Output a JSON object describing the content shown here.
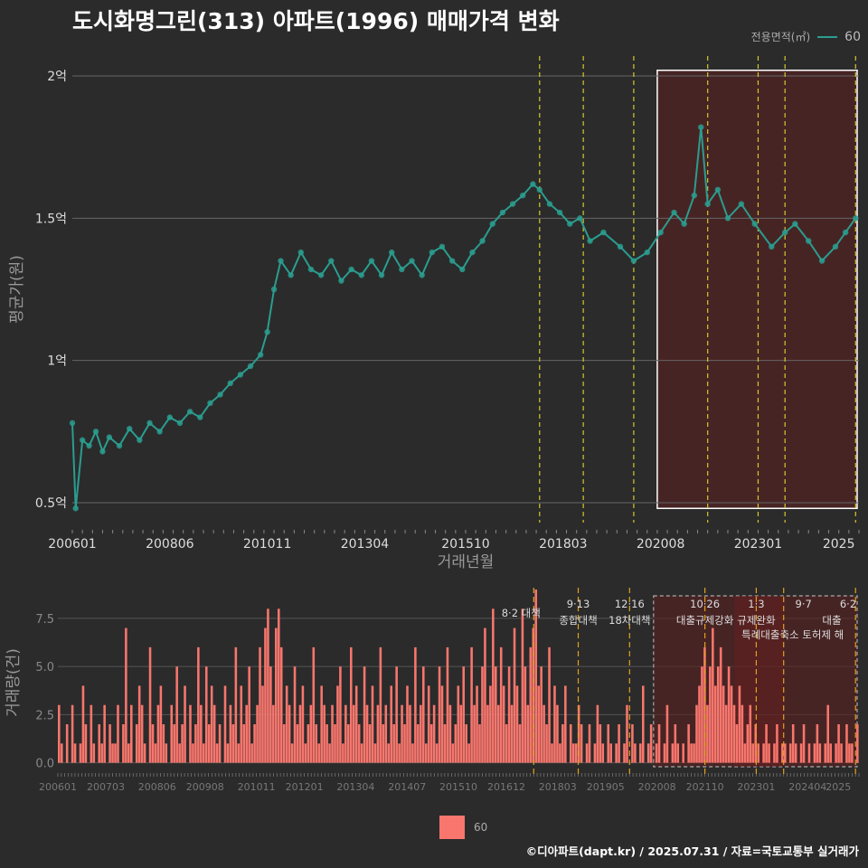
{
  "title": "도시화명그린(313) 아파트(1996) 매매가격 변화",
  "legend_top": {
    "title": "전용면적(㎡)",
    "value": "60"
  },
  "legend_bottom": {
    "value": "60"
  },
  "footer": "©디아파트(dapt.kr) / 2025.07.31 / 자료=국토교통부 실거래가",
  "colors": {
    "background": "#2b2b2b",
    "line": "#2a9d8f",
    "bar": "#f8766d",
    "policy_top": "#d4c832",
    "policy_bottom": "#e0a020",
    "highlight": "#5a1f1f"
  },
  "chart_data": [
    {
      "type": "line",
      "ylabel": "평균가(원)",
      "xlabel": "거래년월",
      "y_ticks": [
        "0.5억",
        "1억",
        "1.5억",
        "2억"
      ],
      "y_tick_values": [
        0.5,
        1.0,
        1.5,
        2.0
      ],
      "ylim": [
        0.43,
        2.07
      ],
      "x_ticks": [
        "200601",
        "200806",
        "201011",
        "201304",
        "201510",
        "201803",
        "202008",
        "202301",
        "2025"
      ],
      "xlim": [
        "2006-01",
        "2025-07"
      ],
      "policy_lines": [
        "2017-08",
        "2018-09",
        "2019-12",
        "2021-10",
        "2023-01",
        "2023-09",
        "2025-06"
      ],
      "highlight_range": [
        "2020-07",
        "2025-07"
      ],
      "series": [
        {
          "name": "60",
          "points": [
            [
              "2006-01",
              0.78
            ],
            [
              "2006-02",
              0.48
            ],
            [
              "2006-04",
              0.72
            ],
            [
              "2006-06",
              0.7
            ],
            [
              "2006-08",
              0.75
            ],
            [
              "2006-10",
              0.68
            ],
            [
              "2006-12",
              0.73
            ],
            [
              "2007-03",
              0.7
            ],
            [
              "2007-06",
              0.76
            ],
            [
              "2007-09",
              0.72
            ],
            [
              "2007-12",
              0.78
            ],
            [
              "2008-03",
              0.75
            ],
            [
              "2008-06",
              0.8
            ],
            [
              "2008-09",
              0.78
            ],
            [
              "2008-12",
              0.82
            ],
            [
              "2009-03",
              0.8
            ],
            [
              "2009-06",
              0.85
            ],
            [
              "2009-09",
              0.88
            ],
            [
              "2009-12",
              0.92
            ],
            [
              "2010-03",
              0.95
            ],
            [
              "2010-06",
              0.98
            ],
            [
              "2010-09",
              1.02
            ],
            [
              "2010-11",
              1.1
            ],
            [
              "2011-01",
              1.25
            ],
            [
              "2011-03",
              1.35
            ],
            [
              "2011-06",
              1.3
            ],
            [
              "2011-09",
              1.38
            ],
            [
              "2011-12",
              1.32
            ],
            [
              "2012-03",
              1.3
            ],
            [
              "2012-06",
              1.35
            ],
            [
              "2012-09",
              1.28
            ],
            [
              "2012-12",
              1.32
            ],
            [
              "2013-03",
              1.3
            ],
            [
              "2013-06",
              1.35
            ],
            [
              "2013-09",
              1.3
            ],
            [
              "2013-12",
              1.38
            ],
            [
              "2014-03",
              1.32
            ],
            [
              "2014-06",
              1.35
            ],
            [
              "2014-09",
              1.3
            ],
            [
              "2014-12",
              1.38
            ],
            [
              "2015-03",
              1.4
            ],
            [
              "2015-06",
              1.35
            ],
            [
              "2015-09",
              1.32
            ],
            [
              "2015-12",
              1.38
            ],
            [
              "2016-03",
              1.42
            ],
            [
              "2016-06",
              1.48
            ],
            [
              "2016-09",
              1.52
            ],
            [
              "2016-12",
              1.55
            ],
            [
              "2017-03",
              1.58
            ],
            [
              "2017-06",
              1.62
            ],
            [
              "2017-08",
              1.6
            ],
            [
              "2017-11",
              1.55
            ],
            [
              "2018-02",
              1.52
            ],
            [
              "2018-05",
              1.48
            ],
            [
              "2018-08",
              1.5
            ],
            [
              "2018-11",
              1.42
            ],
            [
              "2019-03",
              1.45
            ],
            [
              "2019-08",
              1.4
            ],
            [
              "2019-12",
              1.35
            ],
            [
              "2020-04",
              1.38
            ],
            [
              "2020-08",
              1.45
            ],
            [
              "2020-12",
              1.52
            ],
            [
              "2021-03",
              1.48
            ],
            [
              "2021-06",
              1.58
            ],
            [
              "2021-08",
              1.82
            ],
            [
              "2021-10",
              1.55
            ],
            [
              "2022-01",
              1.6
            ],
            [
              "2022-04",
              1.5
            ],
            [
              "2022-08",
              1.55
            ],
            [
              "2022-12",
              1.48
            ],
            [
              "2023-05",
              1.4
            ],
            [
              "2023-09",
              1.45
            ],
            [
              "2023-12",
              1.48
            ],
            [
              "2024-04",
              1.42
            ],
            [
              "2024-08",
              1.35
            ],
            [
              "2024-12",
              1.4
            ],
            [
              "2025-03",
              1.45
            ],
            [
              "2025-06",
              1.5
            ]
          ]
        }
      ]
    },
    {
      "type": "bar",
      "ylabel": "거래량(건)",
      "y_ticks": [
        "0.0",
        "2.5",
        "5.0",
        "7.5"
      ],
      "y_tick_values": [
        0,
        2.5,
        5.0,
        7.5
      ],
      "ylim": [
        -0.3,
        9.0
      ],
      "x_ticks": [
        "200601",
        "200703",
        "200806",
        "200908",
        "201011",
        "201201",
        "201304",
        "201407",
        "201510",
        "201612",
        "201803",
        "201905",
        "202008",
        "202110",
        "202301",
        "202404",
        "2025"
      ],
      "policy_labels": [
        {
          "date": "2017-08",
          "line1": "8·2 대책",
          "line2": ""
        },
        {
          "date": "2018-09",
          "line1": "9·13",
          "line2": "종합대책"
        },
        {
          "date": "2019-12",
          "line1": "12·16",
          "line2": "18차대책"
        },
        {
          "date": "2021-10",
          "line1": "10·26",
          "line2": "대출규제강화"
        },
        {
          "date": "2023-01",
          "line1": "1·3",
          "line2": "규제완화"
        },
        {
          "date": "2023-09",
          "line1": "9·7",
          "line2": "특례대출축소 토허제 해"
        },
        {
          "date": "2025-06",
          "line1": "6·2",
          "line2": "대출"
        }
      ],
      "series": [
        {
          "name": "60",
          "values": [
            3,
            1,
            0,
            2,
            0,
            3,
            1,
            0,
            1,
            4,
            2,
            0,
            3,
            1,
            0,
            2,
            1,
            3,
            0,
            2,
            1,
            1,
            3,
            0,
            2,
            7,
            1,
            3,
            0,
            2,
            4,
            3,
            1,
            0,
            6,
            2,
            1,
            3,
            4,
            2,
            1,
            0,
            3,
            2,
            5,
            1,
            2,
            4,
            0,
            3,
            1,
            2,
            6,
            3,
            1,
            5,
            2,
            4,
            3,
            1,
            2,
            0,
            4,
            1,
            3,
            2,
            6,
            1,
            4,
            2,
            3,
            5,
            1,
            2,
            3,
            6,
            4,
            7,
            8,
            5,
            3,
            7,
            8,
            6,
            2,
            4,
            3,
            1,
            5,
            2,
            3,
            4,
            1,
            2,
            3,
            6,
            2,
            1,
            4,
            3,
            2,
            1,
            3,
            2,
            4,
            5,
            1,
            3,
            2,
            6,
            3,
            4,
            2,
            1,
            5,
            3,
            2,
            4,
            1,
            3,
            6,
            2,
            3,
            1,
            4,
            2,
            5,
            1,
            3,
            2,
            4,
            3,
            1,
            6,
            2,
            3,
            5,
            1,
            4,
            2,
            3,
            1,
            5,
            4,
            2,
            6,
            3,
            1,
            2,
            4,
            3,
            5,
            2,
            1,
            6,
            3,
            4,
            2,
            5,
            7,
            3,
            4,
            8,
            5,
            3,
            6,
            4,
            2,
            5,
            3,
            7,
            4,
            2,
            8,
            5,
            3,
            6,
            7,
            9,
            4,
            5,
            3,
            2,
            6,
            1,
            4,
            3,
            1,
            2,
            4,
            0,
            2,
            1,
            1,
            3,
            2,
            0,
            1,
            2,
            0,
            1,
            3,
            2,
            1,
            0,
            2,
            1,
            0,
            1,
            2,
            0,
            1,
            3,
            0,
            2,
            1,
            0,
            1,
            4,
            0,
            1,
            2,
            0,
            1,
            2,
            0,
            1,
            3,
            0,
            1,
            2,
            1,
            0,
            1,
            0,
            2,
            1,
            1,
            3,
            4,
            5,
            6,
            3,
            5,
            7,
            4,
            5,
            6,
            4,
            3,
            5,
            4,
            3,
            2,
            4,
            3,
            1,
            2,
            3,
            1,
            2,
            1,
            0,
            1,
            2,
            1,
            0,
            1,
            2,
            0,
            1,
            1,
            0,
            1,
            2,
            1,
            0,
            1,
            2,
            0,
            1,
            0,
            1,
            2,
            1,
            0,
            1,
            3,
            1,
            0,
            1,
            2,
            1,
            0,
            2,
            1,
            1,
            0,
            2
          ]
        }
      ]
    }
  ]
}
